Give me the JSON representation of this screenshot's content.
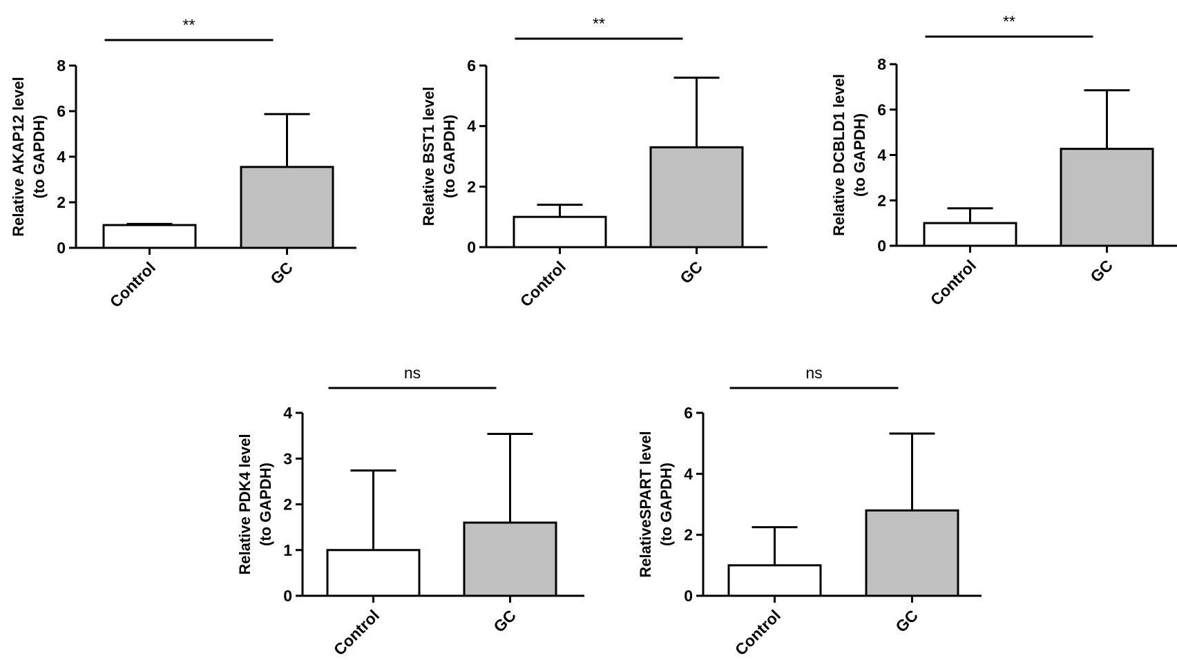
{
  "chart_data": [
    {
      "type": "bar",
      "ylabel_line1": "Relative AKAP12 level",
      "ylabel_line2": "(to GAPDH)",
      "categories": [
        "Control",
        "GC"
      ],
      "values": [
        1.0,
        3.55
      ],
      "errors": [
        0.05,
        2.32
      ],
      "ylim": [
        0,
        8
      ],
      "yticks": [
        "0",
        "2",
        "4",
        "6",
        "8"
      ],
      "significance": "**",
      "bar_colors": [
        "#ffffff",
        "#c0c0c0"
      ]
    },
    {
      "type": "bar",
      "ylabel_line1": "Relative BST1 level",
      "ylabel_line2": "(to GAPDH)",
      "categories": [
        "Control",
        "GC"
      ],
      "values": [
        1.0,
        3.3
      ],
      "errors": [
        0.4,
        2.3
      ],
      "ylim": [
        0,
        6
      ],
      "yticks": [
        "0",
        "2",
        "4",
        "6"
      ],
      "significance": "**",
      "bar_colors": [
        "#ffffff",
        "#c0c0c0"
      ]
    },
    {
      "type": "bar",
      "ylabel_line1": "Relative DCBLD1 level",
      "ylabel_line2": "(to GAPDH)",
      "categories": [
        "Control",
        "GC"
      ],
      "values": [
        1.0,
        4.27
      ],
      "errors": [
        0.65,
        2.58
      ],
      "ylim": [
        0,
        8
      ],
      "yticks": [
        "0",
        "2",
        "4",
        "6",
        "8"
      ],
      "significance": "**",
      "bar_colors": [
        "#ffffff",
        "#c0c0c0"
      ]
    },
    {
      "type": "bar",
      "ylabel_line1": "Relative PDK4 level",
      "ylabel_line2": "(to GAPDH)",
      "categories": [
        "Control",
        "GC"
      ],
      "values": [
        1.0,
        1.6
      ],
      "errors": [
        1.74,
        1.94
      ],
      "ylim": [
        0,
        4
      ],
      "yticks": [
        "0",
        "1",
        "2",
        "3",
        "4"
      ],
      "significance": "ns",
      "bar_colors": [
        "#ffffff",
        "#c0c0c0"
      ]
    },
    {
      "type": "bar",
      "ylabel_line1": "RelativeSPART level",
      "ylabel_line2": "(to GAPDH)",
      "categories": [
        "Control",
        "GC"
      ],
      "values": [
        1.0,
        2.8
      ],
      "errors": [
        1.25,
        2.52
      ],
      "ylim": [
        0,
        6
      ],
      "yticks": [
        "0",
        "2",
        "4",
        "6"
      ],
      "significance": "ns",
      "bar_colors": [
        "#ffffff",
        "#c0c0c0"
      ]
    }
  ]
}
